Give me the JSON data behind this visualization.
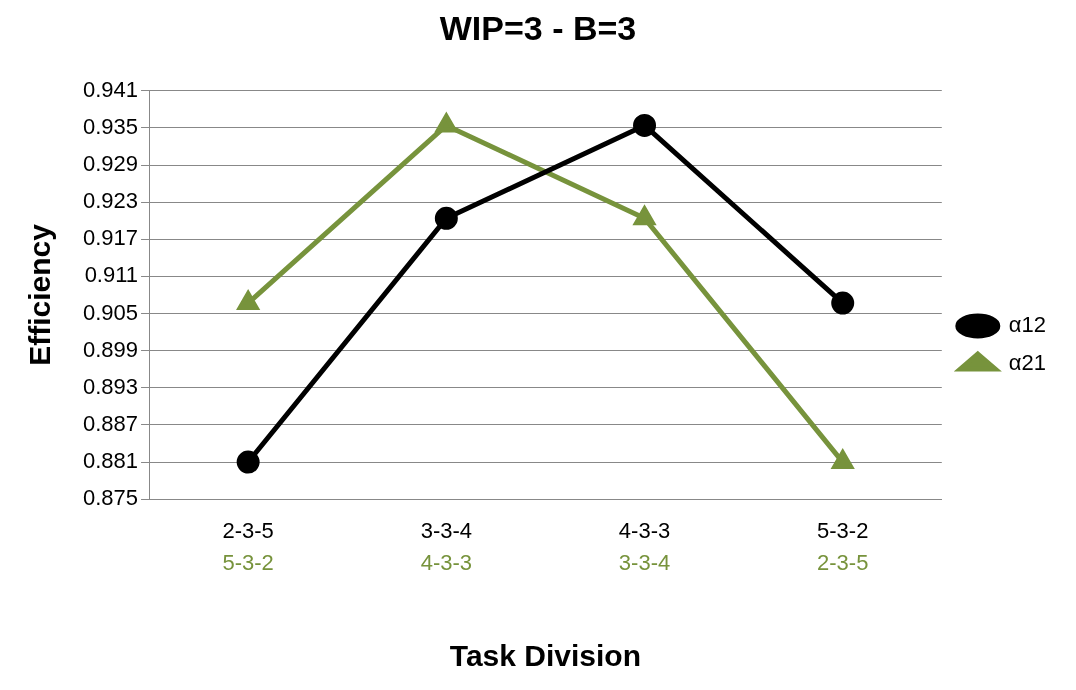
{
  "chart_data": {
    "type": "line",
    "title": "WIP=3 - B=3",
    "xlabel": "Task Division",
    "ylabel": "Efficiency",
    "categories": [
      "2-3-5\n5-3-2",
      "3-3-4\n4-3-3",
      "4-3-3\n3-3-4",
      "5-3-2\n2-3-5"
    ],
    "series": [
      {
        "name": "α12",
        "color": "#000000",
        "marker": "circle",
        "values": [
          0.881,
          0.9204,
          0.9354,
          0.9067
        ]
      },
      {
        "name": "α21",
        "color": "#77933c",
        "marker": "triangle",
        "values": [
          0.9067,
          0.9354,
          0.9204,
          0.881
        ]
      }
    ],
    "ylim": [
      0.875,
      0.941
    ],
    "yticks": [
      0.875,
      0.881,
      0.887,
      0.893,
      0.899,
      0.905,
      0.911,
      0.917,
      0.923,
      0.929,
      0.935,
      0.941
    ],
    "grid": "y",
    "legend": "right"
  }
}
